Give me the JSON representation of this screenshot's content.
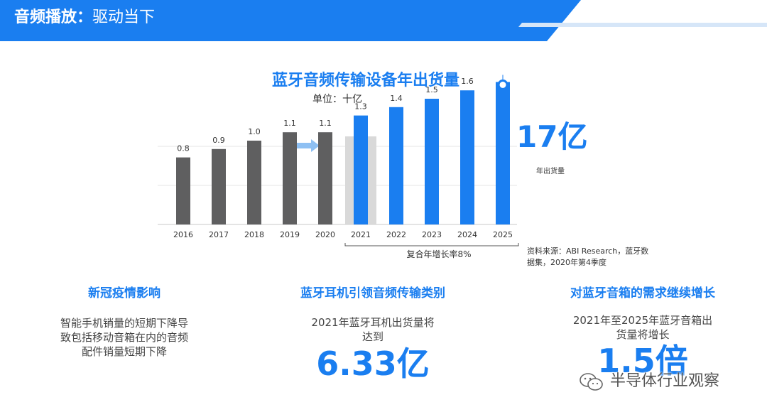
{
  "header": {
    "title_bold": "音频播放：",
    "title_rest": "驱动当下"
  },
  "colors": {
    "banner": "#1a7ef0",
    "accent": "#1a7ef0",
    "gray_bar": "#5f5f60",
    "highlight_box": "#d9d9d9"
  },
  "chart_data": {
    "type": "bar",
    "title": "蓝牙音频传输设备年出货量",
    "unit_label": "单位：十亿",
    "categories": [
      "2016",
      "2017",
      "2018",
      "2019",
      "2020",
      "2021",
      "2022",
      "2023",
      "2024",
      "2025"
    ],
    "values": [
      0.8,
      0.9,
      1.0,
      1.1,
      1.1,
      1.3,
      1.4,
      1.5,
      1.6,
      1.7
    ],
    "value_labels": [
      "0.8",
      "0.9",
      "1.0",
      "1.1",
      "1.1",
      "1.3",
      "1.4",
      "1.5",
      "1.6",
      ""
    ],
    "historical_count": 5,
    "highlight_category": "2021",
    "cagr_label": "复合年增长率8%",
    "callout_value": "17亿",
    "callout_label": "年出货量",
    "source": "资料来源：ABI Research，蓝牙数据集，2020年第4季度"
  },
  "columns": [
    {
      "title": "新冠疫情影响",
      "lines": [
        "智能手机销量的短期下降导",
        "致包括移动音箱在内的音频",
        "配件销量短期下降"
      ],
      "big": ""
    },
    {
      "title": "蓝牙耳机引领音频传输类别",
      "lines": [
        "2021年蓝牙耳机出货量将",
        "达到"
      ],
      "big": "6.33亿"
    },
    {
      "title": "对蓝牙音箱的需求继续增长",
      "lines": [
        "2021年至2025年蓝牙音箱出",
        "货量将增长"
      ],
      "big": "1.5倍"
    }
  ],
  "watermark": {
    "text": "半导体行业观察",
    "icon": "wechat-icon"
  }
}
